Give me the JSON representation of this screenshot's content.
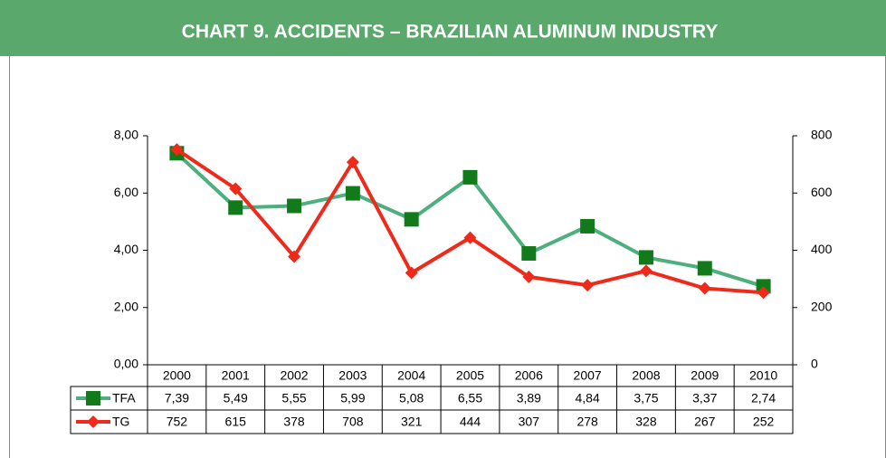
{
  "chart_data": {
    "type": "line",
    "title": "CHART 9. ACCIDENTS – BRAZILIAN ALUMINUM INDUSTRY",
    "categories": [
      "2000",
      "2001",
      "2002",
      "2003",
      "2004",
      "2005",
      "2006",
      "2007",
      "2008",
      "2009",
      "2010"
    ],
    "series": [
      {
        "name": "TFA",
        "color": "#4caf7d",
        "marker_color": "#137a1c",
        "marker": "square",
        "values": [
          7.39,
          5.49,
          5.55,
          5.99,
          5.08,
          6.55,
          3.89,
          4.84,
          3.75,
          3.37,
          2.74
        ],
        "value_labels": [
          "7,39",
          "5,49",
          "5,55",
          "5,99",
          "5,08",
          "6,55",
          "3,89",
          "4,84",
          "3,75",
          "3,37",
          "2,74"
        ]
      },
      {
        "name": "TG",
        "color": "#ee2a1b",
        "marker_color": "#ee2a1b",
        "marker": "diamond",
        "axis": "y2",
        "values": [
          752,
          615,
          378,
          708,
          321,
          444,
          307,
          278,
          328,
          267,
          252
        ]
      }
    ],
    "ylim": [
      0,
      8
    ],
    "yticks": [
      {
        "value": 0,
        "label": "0,00"
      },
      {
        "value": 2,
        "label": "2,00"
      },
      {
        "value": 4,
        "label": "4,00"
      },
      {
        "value": 6,
        "label": "6,00"
      },
      {
        "value": 8,
        "label": "8,00"
      }
    ],
    "y2lim": [
      0,
      800
    ],
    "y2ticks": [
      0,
      200,
      400,
      600,
      800
    ],
    "grid": false,
    "legend": "data-table"
  }
}
